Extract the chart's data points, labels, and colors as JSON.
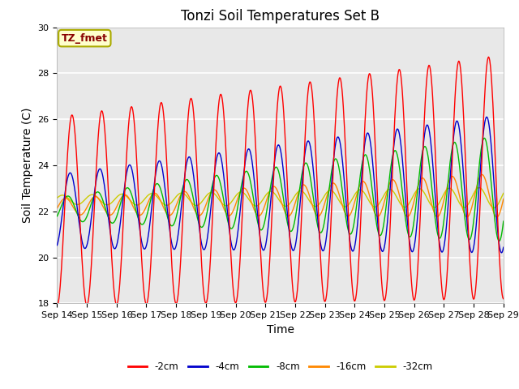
{
  "title": "Tonzi Soil Temperatures Set B",
  "xlabel": "Time",
  "ylabel": "Soil Temperature (C)",
  "ylim": [
    18,
    30
  ],
  "x_tick_labels": [
    "Sep 14",
    "Sep 15",
    "Sep 16",
    "Sep 17",
    "Sep 18",
    "Sep 19",
    "Sep 20",
    "Sep 21",
    "Sep 22",
    "Sep 23",
    "Sep 24",
    "Sep 25",
    "Sep 26",
    "Sep 27",
    "Sep 28",
    "Sep 29"
  ],
  "annotation_text": "TZ_fmet",
  "annotation_color": "#880000",
  "annotation_bg": "#ffffcc",
  "annotation_border": "#aaaa00",
  "series_colors": {
    "-2cm": "#ff0000",
    "-4cm": "#0000cc",
    "-8cm": "#00bb00",
    "-16cm": "#ff8800",
    "-32cm": "#cccc00"
  },
  "legend_labels": [
    "-2cm",
    "-4cm",
    "-8cm",
    "-16cm",
    "-32cm"
  ],
  "background_color": "#e8e8e8",
  "grid_color": "#ffffff",
  "title_fontsize": 12,
  "axis_fontsize": 10,
  "tick_fontsize": 8
}
